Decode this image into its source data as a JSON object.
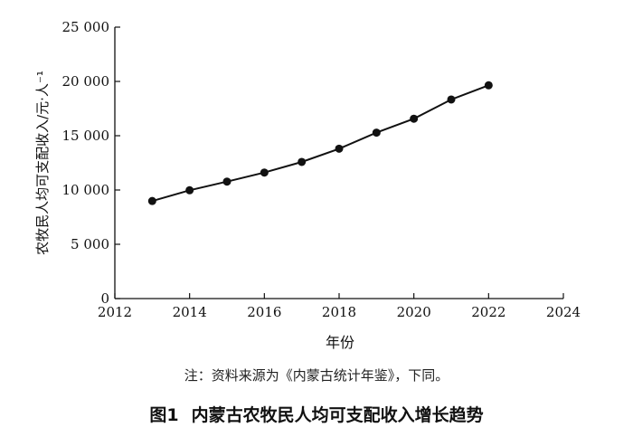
{
  "chart_data": {
    "type": "line",
    "xlabel": "年份",
    "ylabel": "农牧民人均可支配收入/元·人⁻¹",
    "xlim": [
      2012,
      2024
    ],
    "ylim": [
      0,
      25000
    ],
    "x_ticks": [
      "2012",
      "2014",
      "2016",
      "2018",
      "2020",
      "2022",
      "2024"
    ],
    "y_ticks": [
      "0",
      "5 000",
      "10 000",
      "15 000",
      "20 000",
      "25 000"
    ],
    "grid": false,
    "series": [
      {
        "x": [
          2013,
          2014,
          2015,
          2016,
          2017,
          2018,
          2019,
          2020,
          2021,
          2022
        ],
        "y": [
          8985,
          9976,
          10776,
          11609,
          12584,
          13803,
          15283,
          16567,
          18337,
          19641
        ],
        "color": "#111111"
      }
    ]
  },
  "note": "注：资料来源为《内蒙古统计年鉴》，下同。",
  "caption": {
    "number": "图1",
    "title": "内蒙古农牧民人均可支配收入增长趋势"
  }
}
